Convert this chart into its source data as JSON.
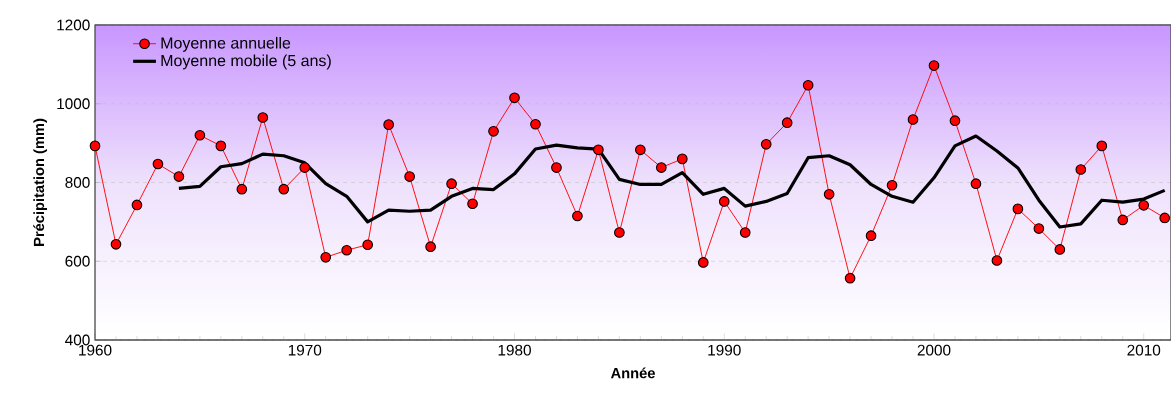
{
  "chart_data": {
    "type": "line",
    "xlabel": "Année",
    "ylabel": "Précipitation  (mm)",
    "xlim": [
      1960,
      2011.3
    ],
    "ylim": [
      400,
      1200
    ],
    "xticks": [
      1960,
      1970,
      1980,
      1990,
      2000,
      2010
    ],
    "yticks": [
      400,
      600,
      800,
      1000,
      1200
    ],
    "grid": "y",
    "legend": "top left",
    "series": [
      {
        "name": "Moyenne annuelle",
        "color": "#ff0000",
        "marker": "circle",
        "line_style": "solid",
        "x": [
          1960,
          1961,
          1962,
          1963,
          1964,
          1965,
          1966,
          1967,
          1968,
          1969,
          1970,
          1971,
          1972,
          1973,
          1974,
          1975,
          1976,
          1977,
          1978,
          1979,
          1980,
          1981,
          1982,
          1983,
          1984,
          1985,
          1986,
          1987,
          1988,
          1989,
          1990,
          1991,
          1992,
          1993,
          1994,
          1995,
          1996,
          1997,
          1998,
          1999,
          2000,
          2001,
          2002,
          2003,
          2004,
          2005,
          2006,
          2007,
          2008,
          2009,
          2010,
          2011
        ],
        "values": [
          893,
          643,
          743,
          847,
          815,
          920,
          893,
          783,
          965,
          783,
          838,
          610,
          628,
          642,
          947,
          815,
          637,
          797,
          746,
          930,
          1015,
          948,
          838,
          715,
          883,
          673,
          883,
          838,
          860,
          597,
          752,
          673,
          897,
          952,
          1047,
          770,
          557,
          665,
          793,
          960,
          1097,
          957,
          797,
          602,
          733,
          683,
          630,
          833,
          893,
          705,
          742,
          710
        ]
      },
      {
        "name": "Moyenne mobile (5 ans)",
        "color": "#000000",
        "marker": "none",
        "line_style": "solid",
        "x": [
          1964,
          1965,
          1966,
          1967,
          1968,
          1969,
          1970,
          1971,
          1972,
          1973,
          1974,
          1975,
          1976,
          1977,
          1978,
          1979,
          1980,
          1981,
          1982,
          1983,
          1984,
          1985,
          1986,
          1987,
          1988,
          1989,
          1990,
          1991,
          1992,
          1993,
          1994,
          1995,
          1996,
          1997,
          1998,
          1999,
          2000,
          2001,
          2002,
          2003,
          2004,
          2005,
          2006,
          2007,
          2008,
          2009,
          2010,
          2011
        ],
        "values": [
          785,
          790,
          840,
          848,
          872,
          868,
          850,
          797,
          765,
          700,
          730,
          727,
          730,
          765,
          785,
          782,
          822,
          885,
          895,
          888,
          885,
          808,
          795,
          795,
          825,
          770,
          785,
          740,
          752,
          772,
          863,
          868,
          845,
          795,
          765,
          750,
          812,
          893,
          918,
          880,
          837,
          755,
          687,
          695,
          755,
          750,
          758,
          780
        ]
      }
    ]
  }
}
